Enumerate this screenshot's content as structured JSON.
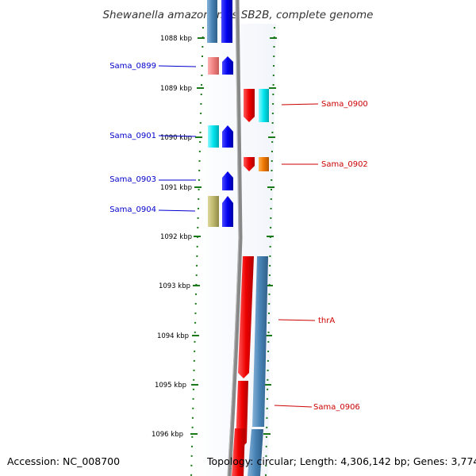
{
  "title": "Shewanella amazonensis SB2B, complete genome",
  "footer": {
    "accession": "Accession: NC_008700",
    "topology": "Topology: circular; Length: 4,306,142 bp; Genes: 3,774"
  },
  "colors": {
    "tick": "#1a7a1a",
    "left_label": "#0000cc",
    "right_label": "#cc0000",
    "backbone": "#808080"
  },
  "scale_labels": [
    "1088 kbp",
    "1089 kbp",
    "1090 kbp",
    "1091 kbp",
    "1092 kbp",
    "1093 kbp",
    "1094 kbp",
    "1095 kbp",
    "1096 kbp"
  ],
  "features": {
    "left": [
      {
        "name": "Sama_0899",
        "color": "#0000cc"
      },
      {
        "name": "Sama_0901",
        "color": "#0000cc"
      },
      {
        "name": "Sama_0903",
        "color": "#0000cc"
      },
      {
        "name": "Sama_0904",
        "color": "#0000cc"
      }
    ],
    "right": [
      {
        "name": "Sama_0900",
        "color": "#cc0000"
      },
      {
        "name": "Sama_0902",
        "color": "#cc0000"
      },
      {
        "name": "thrA",
        "color": "#cc0000"
      },
      {
        "name": "Sama_0906",
        "color": "#cc0000"
      }
    ]
  },
  "gene_colors": {
    "blue": "#0000ee",
    "steel": "#4682b4",
    "pink": "#f08080",
    "cyan": "#00e5ee",
    "khaki": "#bdb76b",
    "red": "#ee0000",
    "orange": "#ee7600"
  }
}
